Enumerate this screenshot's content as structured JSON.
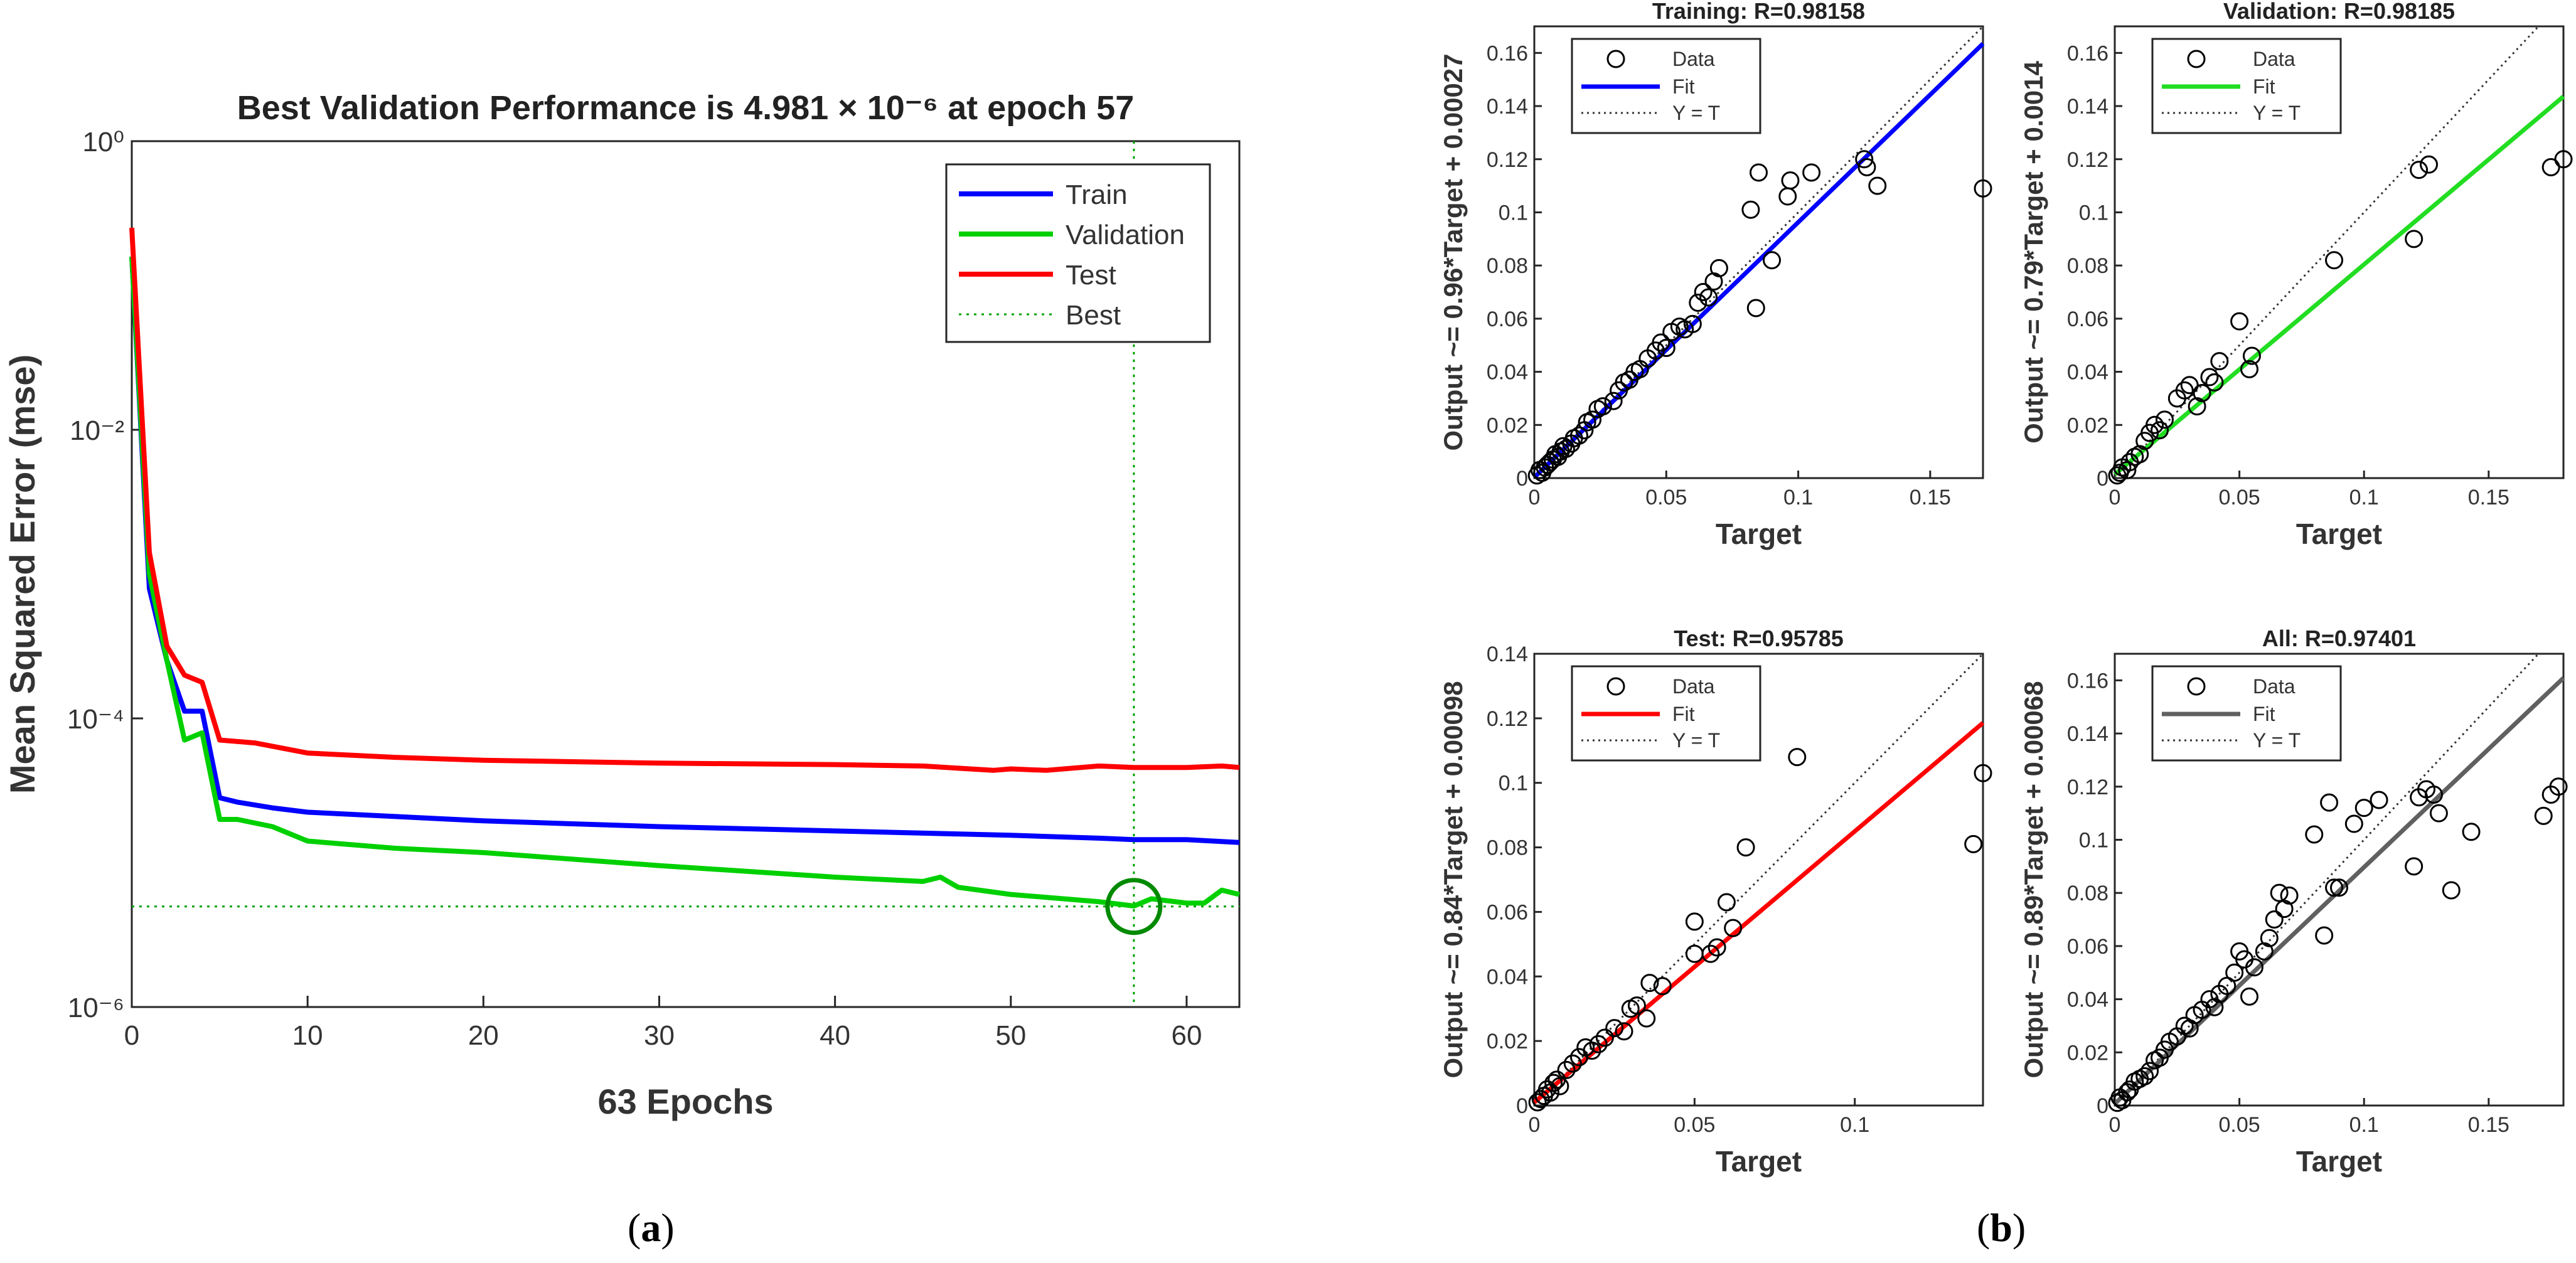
{
  "labels": {
    "a": "a",
    "b": "b"
  },
  "chart_data": [
    {
      "type": "line",
      "title": "Best Validation Performance is 4.981 × 10⁻⁶ at epoch 57",
      "xlabel": "63 Epochs",
      "ylabel": "Mean Squared Error  (mse)",
      "xlim": [
        0,
        63
      ],
      "ylim_log10": [
        -6,
        0
      ],
      "yscale": "log",
      "xticks": [
        0,
        10,
        20,
        30,
        40,
        50,
        60
      ],
      "yticks": [
        "10⁰",
        "10⁻²",
        "10⁻⁴",
        "10⁻⁶"
      ],
      "ytick_values_log10": [
        0,
        -2,
        -4,
        -6
      ],
      "legend": {
        "position": "top-right",
        "entries": [
          "Train",
          "Validation",
          "Test",
          "Best"
        ]
      },
      "best": {
        "epoch": 57,
        "value": 4.981e-06,
        "log10": -5.303
      },
      "series": [
        {
          "name": "Train",
          "color": "#0000ff",
          "x": [
            0,
            1,
            2,
            3,
            4,
            5,
            6,
            8,
            10,
            15,
            20,
            30,
            40,
            50,
            55,
            57,
            60,
            63
          ],
          "log10": [
            -0.8,
            -3.1,
            -3.6,
            -3.95,
            -3.95,
            -4.55,
            -4.58,
            -4.62,
            -4.65,
            -4.68,
            -4.71,
            -4.75,
            -4.78,
            -4.81,
            -4.83,
            -4.84,
            -4.84,
            -4.86
          ]
        },
        {
          "name": "Validation",
          "color": "#00d000",
          "x": [
            0,
            1,
            2,
            3,
            4,
            5,
            6,
            8,
            10,
            15,
            20,
            30,
            40,
            45,
            46,
            47,
            50,
            53,
            55,
            57,
            58,
            60,
            61,
            62,
            63
          ],
          "log10": [
            -0.8,
            -3.0,
            -3.6,
            -4.15,
            -4.1,
            -4.7,
            -4.7,
            -4.75,
            -4.85,
            -4.9,
            -4.93,
            -5.02,
            -5.1,
            -5.13,
            -5.1,
            -5.17,
            -5.22,
            -5.25,
            -5.27,
            -5.3,
            -5.25,
            -5.28,
            -5.28,
            -5.19,
            -5.22
          ]
        },
        {
          "name": "Test",
          "color": "#ff0000",
          "x": [
            0,
            1,
            2,
            3,
            4,
            5,
            7,
            10,
            15,
            20,
            30,
            40,
            45,
            49,
            50,
            52,
            55,
            57,
            60,
            62,
            63
          ],
          "log10": [
            -0.6,
            -2.85,
            -3.5,
            -3.7,
            -3.75,
            -4.15,
            -4.17,
            -4.24,
            -4.27,
            -4.29,
            -4.31,
            -4.32,
            -4.33,
            -4.36,
            -4.35,
            -4.36,
            -4.33,
            -4.34,
            -4.34,
            -4.33,
            -4.34
          ]
        }
      ]
    },
    {
      "type": "scatter",
      "title": "Training: R=0.98158",
      "xlabel": "Target",
      "ylabel": "Output ~= 0.96*Target + 0.00027",
      "xlim": [
        0,
        0.17
      ],
      "ylim": [
        0,
        0.17
      ],
      "xticks": [
        "0",
        "0.05",
        "0.1",
        "0.15"
      ],
      "xtick_values": [
        0,
        0.05,
        0.1,
        0.15
      ],
      "yticks": [
        "0",
        "0.02",
        "0.04",
        "0.06",
        "0.08",
        "0.1",
        "0.12",
        "0.14",
        "0.16"
      ],
      "ytick_values": [
        0,
        0.02,
        0.04,
        0.06,
        0.08,
        0.1,
        0.12,
        0.14,
        0.16
      ],
      "fit": {
        "slope": 0.96,
        "intercept": 0.00027,
        "color": "#0000ff"
      },
      "legend": {
        "position": "top-left",
        "entries": [
          "Data",
          "Fit",
          "Y = T"
        ]
      },
      "points": [
        [
          0.001,
          0.001
        ],
        [
          0.002,
          0.003
        ],
        [
          0.003,
          0.002
        ],
        [
          0.004,
          0.004
        ],
        [
          0.005,
          0.005
        ],
        [
          0.006,
          0.006
        ],
        [
          0.007,
          0.007
        ],
        [
          0.008,
          0.009
        ],
        [
          0.009,
          0.008
        ],
        [
          0.01,
          0.01
        ],
        [
          0.011,
          0.012
        ],
        [
          0.012,
          0.011
        ],
        [
          0.014,
          0.013
        ],
        [
          0.015,
          0.015
        ],
        [
          0.017,
          0.016
        ],
        [
          0.019,
          0.018
        ],
        [
          0.02,
          0.021
        ],
        [
          0.022,
          0.022
        ],
        [
          0.024,
          0.026
        ],
        [
          0.026,
          0.027
        ],
        [
          0.03,
          0.029
        ],
        [
          0.032,
          0.033
        ],
        [
          0.034,
          0.036
        ],
        [
          0.036,
          0.037
        ],
        [
          0.038,
          0.04
        ],
        [
          0.04,
          0.041
        ],
        [
          0.043,
          0.045
        ],
        [
          0.046,
          0.048
        ],
        [
          0.048,
          0.051
        ],
        [
          0.05,
          0.049
        ],
        [
          0.052,
          0.055
        ],
        [
          0.055,
          0.057
        ],
        [
          0.057,
          0.056
        ],
        [
          0.06,
          0.058
        ],
        [
          0.062,
          0.066
        ],
        [
          0.064,
          0.07
        ],
        [
          0.066,
          0.068
        ],
        [
          0.068,
          0.074
        ],
        [
          0.07,
          0.079
        ],
        [
          0.084,
          0.064
        ],
        [
          0.09,
          0.082
        ],
        [
          0.082,
          0.101
        ],
        [
          0.085,
          0.115
        ],
        [
          0.096,
          0.106
        ],
        [
          0.097,
          0.112
        ],
        [
          0.105,
          0.115
        ],
        [
          0.125,
          0.12
        ],
        [
          0.126,
          0.117
        ],
        [
          0.13,
          0.11
        ],
        [
          0.17,
          0.109
        ]
      ]
    },
    {
      "type": "scatter",
      "title": "Validation: R=0.98185",
      "xlabel": "Target",
      "ylabel": "Output ~= 0.79*Target + 0.0014",
      "xlim": [
        0,
        0.18
      ],
      "ylim": [
        0,
        0.17
      ],
      "xticks": [
        "0",
        "0.05",
        "0.1",
        "0.15"
      ],
      "xtick_values": [
        0,
        0.05,
        0.1,
        0.15
      ],
      "yticks": [
        "0",
        "0.02",
        "0.04",
        "0.06",
        "0.08",
        "0.1",
        "0.12",
        "0.14",
        "0.16"
      ],
      "ytick_values": [
        0,
        0.02,
        0.04,
        0.06,
        0.08,
        0.1,
        0.12,
        0.14,
        0.16
      ],
      "fit": {
        "slope": 0.79,
        "intercept": 0.0014,
        "color": "#22dd22"
      },
      "legend": {
        "position": "top-left",
        "entries": [
          "Data",
          "Fit",
          "Y = T"
        ]
      },
      "points": [
        [
          0.001,
          0.001
        ],
        [
          0.002,
          0.002
        ],
        [
          0.003,
          0.004
        ],
        [
          0.005,
          0.003
        ],
        [
          0.006,
          0.006
        ],
        [
          0.008,
          0.008
        ],
        [
          0.01,
          0.009
        ],
        [
          0.012,
          0.014
        ],
        [
          0.014,
          0.017
        ],
        [
          0.016,
          0.02
        ],
        [
          0.018,
          0.018
        ],
        [
          0.02,
          0.022
        ],
        [
          0.025,
          0.03
        ],
        [
          0.028,
          0.033
        ],
        [
          0.03,
          0.035
        ],
        [
          0.033,
          0.027
        ],
        [
          0.035,
          0.032
        ],
        [
          0.038,
          0.038
        ],
        [
          0.04,
          0.036
        ],
        [
          0.042,
          0.044
        ],
        [
          0.05,
          0.059
        ],
        [
          0.054,
          0.041
        ],
        [
          0.055,
          0.046
        ],
        [
          0.088,
          0.082
        ],
        [
          0.12,
          0.09
        ],
        [
          0.122,
          0.116
        ],
        [
          0.126,
          0.118
        ],
        [
          0.175,
          0.117
        ],
        [
          0.18,
          0.12
        ]
      ]
    },
    {
      "type": "scatter",
      "title": "Test: R=0.95785",
      "xlabel": "Target",
      "ylabel": "Output ~= 0.84*Target + 0.00098",
      "xlim": [
        0,
        0.14
      ],
      "ylim": [
        0,
        0.14
      ],
      "xticks": [
        "0",
        "0.05",
        "0.1"
      ],
      "xtick_values": [
        0,
        0.05,
        0.1
      ],
      "yticks": [
        "0",
        "0.02",
        "0.04",
        "0.06",
        "0.08",
        "0.1",
        "0.12",
        "0.14"
      ],
      "ytick_values": [
        0,
        0.02,
        0.04,
        0.06,
        0.08,
        0.1,
        0.12,
        0.14
      ],
      "fit": {
        "slope": 0.84,
        "intercept": 0.00098,
        "color": "#ff0000"
      },
      "legend": {
        "position": "top-left",
        "entries": [
          "Data",
          "Fit",
          "Y = T"
        ]
      },
      "points": [
        [
          0.001,
          0.001
        ],
        [
          0.002,
          0.002
        ],
        [
          0.003,
          0.003
        ],
        [
          0.004,
          0.005
        ],
        [
          0.005,
          0.004
        ],
        [
          0.006,
          0.007
        ],
        [
          0.007,
          0.008
        ],
        [
          0.008,
          0.006
        ],
        [
          0.01,
          0.011
        ],
        [
          0.012,
          0.013
        ],
        [
          0.014,
          0.015
        ],
        [
          0.016,
          0.018
        ],
        [
          0.018,
          0.017
        ],
        [
          0.02,
          0.019
        ],
        [
          0.022,
          0.021
        ],
        [
          0.025,
          0.024
        ],
        [
          0.028,
          0.023
        ],
        [
          0.03,
          0.03
        ],
        [
          0.032,
          0.031
        ],
        [
          0.035,
          0.027
        ],
        [
          0.036,
          0.038
        ],
        [
          0.04,
          0.037
        ],
        [
          0.05,
          0.047
        ],
        [
          0.05,
          0.057
        ],
        [
          0.055,
          0.047
        ],
        [
          0.057,
          0.049
        ],
        [
          0.06,
          0.063
        ],
        [
          0.062,
          0.055
        ],
        [
          0.066,
          0.08
        ],
        [
          0.082,
          0.108
        ],
        [
          0.137,
          0.081
        ],
        [
          0.14,
          0.103
        ]
      ]
    },
    {
      "type": "scatter",
      "title": "All: R=0.97401",
      "xlabel": "Target",
      "ylabel": "Output ~= 0.89*Target + 0.00068",
      "xlim": [
        0,
        0.18
      ],
      "ylim": [
        0,
        0.17
      ],
      "xticks": [
        "0",
        "0.05",
        "0.1",
        "0.15"
      ],
      "xtick_values": [
        0,
        0.05,
        0.1,
        0.15
      ],
      "yticks": [
        "0",
        "0.02",
        "0.04",
        "0.06",
        "0.08",
        "0.1",
        "0.12",
        "0.14",
        "0.16"
      ],
      "ytick_values": [
        0,
        0.02,
        0.04,
        0.06,
        0.08,
        0.1,
        0.12,
        0.14,
        0.16
      ],
      "fit": {
        "slope": 0.89,
        "intercept": 0.00068,
        "color": "#606060"
      },
      "legend": {
        "position": "top-left",
        "entries": [
          "Data",
          "Fit",
          "Y = T"
        ]
      },
      "points": [
        [
          0.001,
          0.001
        ],
        [
          0.002,
          0.003
        ],
        [
          0.003,
          0.002
        ],
        [
          0.005,
          0.005
        ],
        [
          0.006,
          0.006
        ],
        [
          0.008,
          0.009
        ],
        [
          0.01,
          0.01
        ],
        [
          0.012,
          0.011
        ],
        [
          0.014,
          0.013
        ],
        [
          0.016,
          0.017
        ],
        [
          0.018,
          0.018
        ],
        [
          0.02,
          0.021
        ],
        [
          0.022,
          0.024
        ],
        [
          0.025,
          0.026
        ],
        [
          0.028,
          0.03
        ],
        [
          0.03,
          0.029
        ],
        [
          0.032,
          0.034
        ],
        [
          0.035,
          0.036
        ],
        [
          0.038,
          0.04
        ],
        [
          0.04,
          0.037
        ],
        [
          0.042,
          0.042
        ],
        [
          0.045,
          0.045
        ],
        [
          0.048,
          0.05
        ],
        [
          0.05,
          0.058
        ],
        [
          0.052,
          0.055
        ],
        [
          0.054,
          0.041
        ],
        [
          0.056,
          0.052
        ],
        [
          0.06,
          0.058
        ],
        [
          0.062,
          0.063
        ],
        [
          0.064,
          0.07
        ],
        [
          0.066,
          0.08
        ],
        [
          0.068,
          0.074
        ],
        [
          0.07,
          0.079
        ],
        [
          0.08,
          0.102
        ],
        [
          0.084,
          0.064
        ],
        [
          0.086,
          0.114
        ],
        [
          0.088,
          0.082
        ],
        [
          0.09,
          0.082
        ],
        [
          0.096,
          0.106
        ],
        [
          0.1,
          0.112
        ],
        [
          0.106,
          0.115
        ],
        [
          0.12,
          0.09
        ],
        [
          0.122,
          0.116
        ],
        [
          0.125,
          0.119
        ],
        [
          0.128,
          0.117
        ],
        [
          0.13,
          0.11
        ],
        [
          0.135,
          0.081
        ],
        [
          0.143,
          0.103
        ],
        [
          0.175,
          0.117
        ],
        [
          0.178,
          0.12
        ],
        [
          0.172,
          0.109
        ]
      ]
    }
  ]
}
